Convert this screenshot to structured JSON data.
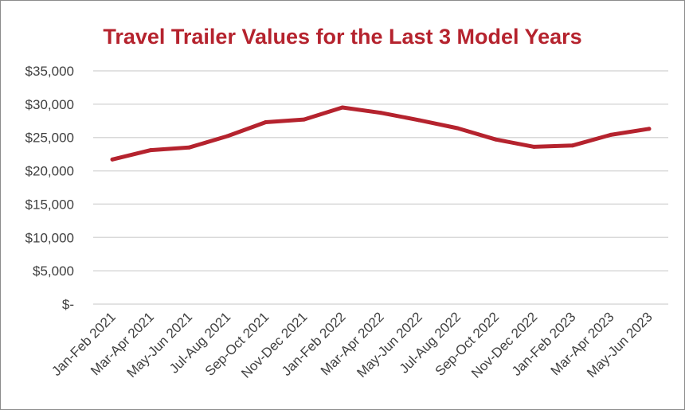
{
  "chart_data": {
    "type": "line",
    "title": "Travel Trailer Values for the Last 3 Model Years",
    "categories": [
      "Jan-Feb 2021",
      "Mar-Apr 2021",
      "May-Jun 2021",
      "Jul-Aug 2021",
      "Sep-Oct 2021",
      "Nov-Dec 2021",
      "Jan-Feb 2022",
      "Mar-Apr 2022",
      "May-Jun 2022",
      "Jul-Aug 2022",
      "Sep-Oct 2022",
      "Nov-Dec 2022",
      "Jan-Feb 2023",
      "Mar-Apr 2023",
      "May-Jun 2023"
    ],
    "values": [
      21700,
      23100,
      23500,
      25200,
      27300,
      27700,
      29500,
      28700,
      27600,
      26400,
      24700,
      23600,
      23800,
      25400,
      26300
    ],
    "ylim": [
      0,
      35000
    ],
    "yticks": [
      0,
      5000,
      10000,
      15000,
      20000,
      25000,
      30000,
      35000
    ],
    "ytick_labels": [
      "$-",
      "$5,000",
      "$10,000",
      "$15,000",
      "$20,000",
      "$25,000",
      "$30,000",
      "$35,000"
    ],
    "grid": true,
    "line_color": "#b5232e",
    "grid_color": "#d9d9d9"
  }
}
